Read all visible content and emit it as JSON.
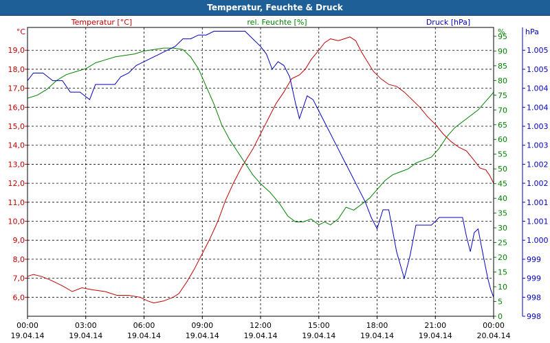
{
  "title": "Temperatur, Feuchte & Druck",
  "colors": {
    "temperature": "#c00000",
    "humidity": "#008000",
    "pressure": "#0000c0",
    "grid": "#000000",
    "titlebar": "#1f5f97"
  },
  "chart_data": {
    "type": "line",
    "title": "Temperatur, Feuchte & Druck",
    "grid": true,
    "x_ticks": [
      {
        "time": "00:00",
        "date": "19.04.14"
      },
      {
        "time": "03:00",
        "date": "19.04.14"
      },
      {
        "time": "06:00",
        "date": "19.04.14"
      },
      {
        "time": "09:00",
        "date": "19.04.14"
      },
      {
        "time": "12:00",
        "date": "19.04.14"
      },
      {
        "time": "15:00",
        "date": "19.04.14"
      },
      {
        "time": "18:00",
        "date": "19.04.14"
      },
      {
        "time": "21:00",
        "date": "19.04.14"
      },
      {
        "time": "00:00",
        "date": "20.04.14"
      }
    ],
    "axes": {
      "temperature": {
        "unit": "°C",
        "label": "Temperatur [°C]",
        "range": [
          5.0,
          20.2
        ],
        "ticks": [
          "6,0",
          "7,0",
          "8,0",
          "9,0",
          "10,0",
          "11,0",
          "12,0",
          "13,0",
          "14,0",
          "15,0",
          "16,0",
          "17,0",
          "18,0",
          "19,0"
        ],
        "tick_values": [
          6,
          7,
          8,
          9,
          10,
          11,
          12,
          13,
          14,
          15,
          16,
          17,
          18,
          19
        ]
      },
      "humidity": {
        "unit": "%",
        "label": "rel. Feuchte [%]",
        "range": [
          0,
          98
        ],
        "ticks": [
          "0",
          "5",
          "10",
          "15",
          "20",
          "25",
          "30",
          "35",
          "40",
          "45",
          "50",
          "55",
          "60",
          "65",
          "70",
          "75",
          "80",
          "85",
          "90",
          "95"
        ],
        "tick_values": [
          0,
          5,
          10,
          15,
          20,
          25,
          30,
          35,
          40,
          45,
          50,
          55,
          60,
          65,
          70,
          75,
          80,
          85,
          90,
          95
        ]
      },
      "pressure": {
        "unit": "hPa",
        "label": "Druck [hPa]",
        "range": [
          998.0,
          1005.6
        ],
        "ticks": [
          "998",
          "998",
          "999",
          "999",
          "1.000",
          "1.001",
          "1.001",
          "1.002",
          "1.002",
          "1.003",
          "1.003",
          "1.004",
          "1.004",
          "1.005",
          "1.005"
        ],
        "tick_values": [
          998.0,
          998.5,
          999.0,
          999.5,
          1000.0,
          1000.5,
          1001.0,
          1001.5,
          1002.0,
          1002.5,
          1003.0,
          1003.5,
          1004.0,
          1004.5,
          1005.0
        ]
      }
    },
    "series": [
      {
        "name": "Temperatur [°C]",
        "axis": "temperature",
        "points": [
          [
            0,
            7.1
          ],
          [
            0.3,
            7.2
          ],
          [
            0.7,
            7.1
          ],
          [
            1.2,
            6.9
          ],
          [
            1.8,
            6.6
          ],
          [
            2.3,
            6.3
          ],
          [
            2.8,
            6.5
          ],
          [
            3.3,
            6.4
          ],
          [
            4.0,
            6.3
          ],
          [
            4.6,
            6.1
          ],
          [
            5.2,
            6.1
          ],
          [
            5.8,
            6.0
          ],
          [
            6.2,
            5.8
          ],
          [
            6.5,
            5.7
          ],
          [
            7.0,
            5.8
          ],
          [
            7.5,
            6.0
          ],
          [
            7.8,
            6.2
          ],
          [
            8.2,
            6.8
          ],
          [
            8.6,
            7.5
          ],
          [
            9.0,
            8.3
          ],
          [
            9.4,
            9.1
          ],
          [
            9.8,
            10.0
          ],
          [
            10.2,
            11.1
          ],
          [
            10.6,
            12.0
          ],
          [
            11.0,
            12.8
          ],
          [
            11.3,
            13.3
          ],
          [
            11.6,
            13.8
          ],
          [
            11.8,
            14.2
          ],
          [
            12.0,
            14.6
          ],
          [
            12.4,
            15.4
          ],
          [
            12.8,
            16.2
          ],
          [
            13.2,
            16.8
          ],
          [
            13.6,
            17.5
          ],
          [
            14.0,
            17.7
          ],
          [
            14.3,
            18.0
          ],
          [
            14.6,
            18.5
          ],
          [
            15.0,
            19.0
          ],
          [
            15.3,
            19.4
          ],
          [
            15.6,
            19.6
          ],
          [
            16.0,
            19.5
          ],
          [
            16.3,
            19.6
          ],
          [
            16.6,
            19.7
          ],
          [
            16.9,
            19.5
          ],
          [
            17.2,
            18.9
          ],
          [
            17.5,
            18.4
          ],
          [
            17.8,
            17.9
          ],
          [
            18.2,
            17.5
          ],
          [
            18.6,
            17.2
          ],
          [
            19.0,
            17.1
          ],
          [
            19.4,
            16.8
          ],
          [
            19.8,
            16.4
          ],
          [
            20.2,
            16.0
          ],
          [
            20.6,
            15.5
          ],
          [
            21.0,
            15.1
          ],
          [
            21.4,
            14.6
          ],
          [
            21.8,
            14.2
          ],
          [
            22.2,
            13.9
          ],
          [
            22.6,
            13.7
          ],
          [
            23.0,
            13.2
          ],
          [
            23.3,
            12.8
          ],
          [
            23.6,
            12.7
          ],
          [
            23.8,
            12.4
          ],
          [
            24.0,
            12.0
          ]
        ]
      },
      {
        "name": "rel. Feuchte [%]",
        "axis": "humidity",
        "points": [
          [
            0,
            74
          ],
          [
            0.5,
            75
          ],
          [
            1.0,
            77
          ],
          [
            1.5,
            80
          ],
          [
            2.0,
            82
          ],
          [
            2.5,
            83
          ],
          [
            3.0,
            84
          ],
          [
            3.5,
            86
          ],
          [
            4.0,
            87
          ],
          [
            4.5,
            88
          ],
          [
            5.0,
            88.5
          ],
          [
            5.5,
            89
          ],
          [
            6.0,
            90
          ],
          [
            6.5,
            90.5
          ],
          [
            7.0,
            91
          ],
          [
            7.5,
            91
          ],
          [
            8.0,
            90.5
          ],
          [
            8.4,
            88
          ],
          [
            8.8,
            84
          ],
          [
            9.2,
            78
          ],
          [
            9.6,
            72
          ],
          [
            10.0,
            65
          ],
          [
            10.4,
            60
          ],
          [
            10.8,
            56
          ],
          [
            11.2,
            52
          ],
          [
            11.6,
            48
          ],
          [
            12.0,
            45
          ],
          [
            12.5,
            42
          ],
          [
            13.0,
            38
          ],
          [
            13.4,
            34
          ],
          [
            13.8,
            32
          ],
          [
            14.2,
            32
          ],
          [
            14.6,
            33
          ],
          [
            15.0,
            31
          ],
          [
            15.3,
            32
          ],
          [
            15.6,
            31
          ],
          [
            16.0,
            33
          ],
          [
            16.4,
            37
          ],
          [
            16.8,
            36
          ],
          [
            17.2,
            38
          ],
          [
            17.6,
            40
          ],
          [
            18.0,
            43
          ],
          [
            18.4,
            46
          ],
          [
            18.8,
            48
          ],
          [
            19.2,
            49
          ],
          [
            19.6,
            50
          ],
          [
            20.0,
            52
          ],
          [
            20.4,
            53
          ],
          [
            20.8,
            54
          ],
          [
            21.2,
            57
          ],
          [
            21.6,
            61
          ],
          [
            22.0,
            64
          ],
          [
            22.4,
            66
          ],
          [
            22.8,
            68
          ],
          [
            23.2,
            70
          ],
          [
            23.6,
            73
          ],
          [
            24.0,
            76
          ]
        ]
      },
      {
        "name": "Druck [hPa]",
        "axis": "pressure",
        "points": [
          [
            0,
            1004.2
          ],
          [
            0.3,
            1004.4
          ],
          [
            0.8,
            1004.4
          ],
          [
            1.3,
            1004.2
          ],
          [
            1.8,
            1004.2
          ],
          [
            2.2,
            1003.9
          ],
          [
            2.7,
            1003.9
          ],
          [
            3.2,
            1003.7
          ],
          [
            3.5,
            1004.1
          ],
          [
            4.0,
            1004.1
          ],
          [
            4.5,
            1004.1
          ],
          [
            4.8,
            1004.3
          ],
          [
            5.2,
            1004.4
          ],
          [
            5.6,
            1004.6
          ],
          [
            6.0,
            1004.7
          ],
          [
            6.4,
            1004.8
          ],
          [
            6.8,
            1004.9
          ],
          [
            7.2,
            1005.0
          ],
          [
            7.6,
            1005.1
          ],
          [
            8.0,
            1005.3
          ],
          [
            8.4,
            1005.3
          ],
          [
            8.8,
            1005.4
          ],
          [
            9.2,
            1005.4
          ],
          [
            9.6,
            1005.5
          ],
          [
            10.0,
            1005.5
          ],
          [
            10.4,
            1005.5
          ],
          [
            10.8,
            1005.5
          ],
          [
            11.2,
            1005.5
          ],
          [
            11.6,
            1005.3
          ],
          [
            12.0,
            1005.1
          ],
          [
            12.3,
            1004.9
          ],
          [
            12.6,
            1004.5
          ],
          [
            12.9,
            1004.7
          ],
          [
            13.2,
            1004.6
          ],
          [
            13.5,
            1004.3
          ],
          [
            13.8,
            1003.6
          ],
          [
            14.0,
            1003.2
          ],
          [
            14.2,
            1003.5
          ],
          [
            14.4,
            1003.8
          ],
          [
            14.7,
            1003.7
          ],
          [
            15.0,
            1003.4
          ],
          [
            15.4,
            1003.0
          ],
          [
            15.8,
            1002.6
          ],
          [
            16.2,
            1002.2
          ],
          [
            16.6,
            1001.8
          ],
          [
            17.0,
            1001.4
          ],
          [
            17.4,
            1001.0
          ],
          [
            17.7,
            1000.6
          ],
          [
            18.0,
            1000.3
          ],
          [
            18.3,
            1000.8
          ],
          [
            18.6,
            1000.8
          ],
          [
            19.0,
            999.7
          ],
          [
            19.4,
            999.0
          ],
          [
            19.7,
            999.6
          ],
          [
            20.0,
            1000.4
          ],
          [
            20.4,
            1000.4
          ],
          [
            20.8,
            1000.4
          ],
          [
            21.2,
            1000.6
          ],
          [
            21.6,
            1000.6
          ],
          [
            22.0,
            1000.6
          ],
          [
            22.4,
            1000.6
          ],
          [
            22.6,
            1000.1
          ],
          [
            22.8,
            999.7
          ],
          [
            23.0,
            1000.2
          ],
          [
            23.2,
            1000.3
          ],
          [
            23.5,
            999.5
          ],
          [
            23.7,
            999.0
          ],
          [
            23.85,
            998.7
          ],
          [
            24.0,
            998.5
          ]
        ]
      }
    ]
  }
}
